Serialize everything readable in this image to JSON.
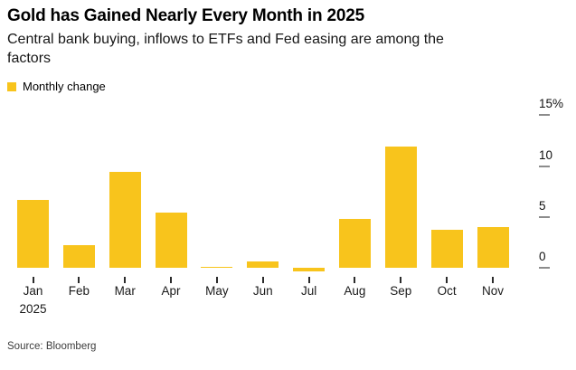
{
  "header": {
    "title": "Gold has Gained Nearly Every Month in 2025",
    "subtitle": "Central bank buying, inflows to ETFs and Fed easing are among the factors"
  },
  "legend": {
    "label": "Monthly change",
    "swatch_color": "#F8C41C"
  },
  "chart_data": {
    "type": "bar",
    "title": "Gold has Gained Nearly Every Month in 2025",
    "subtitle": "Central bank buying, inflows to ETFs and Fed easing are among the factors",
    "series_name": "Monthly change",
    "categories": [
      "Jan",
      "Feb",
      "Mar",
      "Apr",
      "May",
      "Jun",
      "Jul",
      "Aug",
      "Sep",
      "Oct",
      "Nov"
    ],
    "x_sub_label": {
      "index": 0,
      "text": "2025"
    },
    "values": [
      6.7,
      2.2,
      9.4,
      5.4,
      0.1,
      0.6,
      -0.4,
      4.8,
      11.9,
      3.7,
      4.0
    ],
    "unit": "%",
    "y_axis": {
      "side": "right",
      "tick_values": [
        15,
        10,
        5,
        0
      ],
      "tick_labels": [
        "15%",
        "10",
        "5",
        "0"
      ],
      "ylim": [
        -1,
        15
      ]
    },
    "xlabel": "",
    "ylabel": "",
    "grid": "tick-dashes-only",
    "legend_position": "top-left",
    "bar_color": "#F8C41C",
    "background_color": "#ffffff"
  },
  "footer": {
    "source": "Source: Bloomberg"
  }
}
